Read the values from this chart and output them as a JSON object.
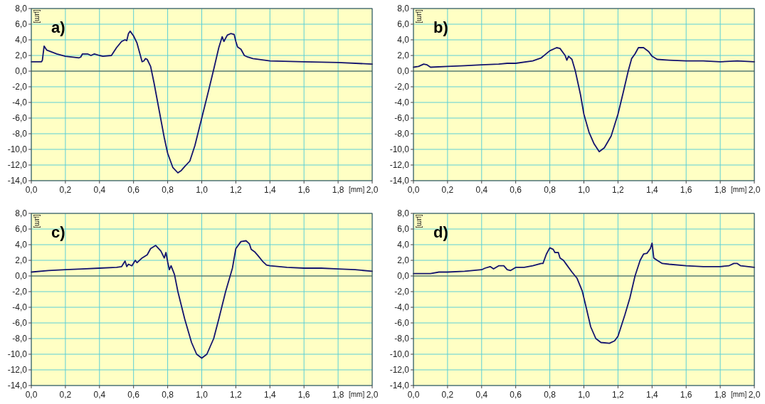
{
  "chart_data": [
    {
      "type": "line",
      "title": "a)",
      "xlabel": "[mm]",
      "ylabel": "[µm]",
      "xlim": [
        0,
        2
      ],
      "ylim": [
        -14,
        8
      ],
      "xticks": [
        {
          "value": 0,
          "label": "0,0"
        },
        {
          "value": 0.2,
          "label": "0,2"
        },
        {
          "value": 0.4,
          "label": "0,4"
        },
        {
          "value": 0.6,
          "label": "0,6"
        },
        {
          "value": 0.8,
          "label": "0,8"
        },
        {
          "value": 1,
          "label": "1,0"
        },
        {
          "value": 1.2,
          "label": "1,2"
        },
        {
          "value": 1.4,
          "label": "1,4"
        },
        {
          "value": 1.6,
          "label": "1,6"
        },
        {
          "value": 1.8,
          "label": "1,8"
        },
        {
          "value": 2,
          "label": "2,0"
        }
      ],
      "yticks": [
        {
          "value": -14,
          "label": "-14,0"
        },
        {
          "value": -12,
          "label": "-12,0"
        },
        {
          "value": -10,
          "label": "-10,0"
        },
        {
          "value": -8,
          "label": "-8,0"
        },
        {
          "value": -6,
          "label": "-6,0"
        },
        {
          "value": -4,
          "label": "-4,0"
        },
        {
          "value": -2,
          "label": "-2,0"
        },
        {
          "value": 0,
          "label": "0,0"
        },
        {
          "value": 2,
          "label": "2,0"
        },
        {
          "value": 4,
          "label": "4,0"
        },
        {
          "value": 6,
          "label": "6,0"
        },
        {
          "value": 8,
          "label": "8,0"
        }
      ],
      "grid": true,
      "line_style": "solid",
      "marker": "none",
      "ref_lines": [
        {
          "axis": "y",
          "value": 0,
          "color": "#555544"
        }
      ],
      "x": [
        0,
        0.06,
        0.065,
        0.075,
        0.09,
        0.15,
        0.2,
        0.28,
        0.29,
        0.3,
        0.33,
        0.35,
        0.37,
        0.4,
        0.42,
        0.47,
        0.5,
        0.53,
        0.55,
        0.56,
        0.57,
        0.58,
        0.6,
        0.62,
        0.64,
        0.65,
        0.66,
        0.67,
        0.68,
        0.7,
        0.72,
        0.75,
        0.78,
        0.8,
        0.83,
        0.86,
        0.88,
        0.9,
        0.93,
        0.96,
        1.0,
        1.04,
        1.07,
        1.1,
        1.12,
        1.13,
        1.15,
        1.17,
        1.19,
        1.2,
        1.21,
        1.23,
        1.25,
        1.27,
        1.3,
        1.4,
        1.6,
        1.8,
        2.0
      ],
      "series": [
        {
          "color": "#14146e",
          "values": [
            1.2,
            1.2,
            1.4,
            3.2,
            2.7,
            2.2,
            1.9,
            1.7,
            1.8,
            2.2,
            2.2,
            2.0,
            2.2,
            2.0,
            1.9,
            2.0,
            3.0,
            3.8,
            4.0,
            3.9,
            4.8,
            5.1,
            4.5,
            3.6,
            2.0,
            1.2,
            1.3,
            1.6,
            1.5,
            0.6,
            -1.5,
            -5.0,
            -8.5,
            -10.5,
            -12.3,
            -13.0,
            -12.7,
            -12.2,
            -11.5,
            -9.5,
            -6.0,
            -2.5,
            0.2,
            3.0,
            4.4,
            3.8,
            4.6,
            4.8,
            4.7,
            3.8,
            3.1,
            2.8,
            2.0,
            1.8,
            1.6,
            1.3,
            1.2,
            1.1,
            0.9
          ]
        }
      ]
    },
    {
      "type": "line",
      "title": "b)",
      "xlabel": "[mm]",
      "ylabel": "[µm]",
      "xlim": [
        0,
        2
      ],
      "ylim": [
        -14,
        8
      ],
      "xticks": [
        {
          "value": 0,
          "label": "0,0"
        },
        {
          "value": 0.2,
          "label": "0,2"
        },
        {
          "value": 0.4,
          "label": "0,4"
        },
        {
          "value": 0.6,
          "label": "0,6"
        },
        {
          "value": 0.8,
          "label": "0,8"
        },
        {
          "value": 1,
          "label": "1,0"
        },
        {
          "value": 1.2,
          "label": "1,2"
        },
        {
          "value": 1.4,
          "label": "1,4"
        },
        {
          "value": 1.6,
          "label": "1,6"
        },
        {
          "value": 1.8,
          "label": "1,8"
        },
        {
          "value": 2,
          "label": "2,0"
        }
      ],
      "yticks": [
        {
          "value": -14,
          "label": "-14,0"
        },
        {
          "value": -12,
          "label": "-12,0"
        },
        {
          "value": -10,
          "label": "-10,0"
        },
        {
          "value": -8,
          "label": "-8,0"
        },
        {
          "value": -6,
          "label": "-6,0"
        },
        {
          "value": -4,
          "label": "-4,0"
        },
        {
          "value": -2,
          "label": "-2,0"
        },
        {
          "value": 0,
          "label": "0,0"
        },
        {
          "value": 2,
          "label": "2,0"
        },
        {
          "value": 4,
          "label": "4,0"
        },
        {
          "value": 6,
          "label": "6,0"
        },
        {
          "value": 8,
          "label": "8,0"
        }
      ],
      "grid": true,
      "line_style": "solid",
      "marker": "none",
      "ref_lines": [
        {
          "axis": "y",
          "value": 0,
          "color": "#555544"
        }
      ],
      "x": [
        0,
        0.03,
        0.06,
        0.08,
        0.1,
        0.2,
        0.3,
        0.4,
        0.5,
        0.55,
        0.6,
        0.7,
        0.75,
        0.8,
        0.84,
        0.86,
        0.88,
        0.89,
        0.9,
        0.91,
        0.93,
        0.95,
        0.98,
        1.0,
        1.03,
        1.06,
        1.09,
        1.12,
        1.16,
        1.2,
        1.23,
        1.26,
        1.28,
        1.3,
        1.32,
        1.35,
        1.38,
        1.4,
        1.43,
        1.5,
        1.6,
        1.7,
        1.8,
        1.9,
        2.0
      ],
      "series": [
        {
          "color": "#14146e",
          "values": [
            0.5,
            0.6,
            0.9,
            0.8,
            0.5,
            0.6,
            0.7,
            0.8,
            0.9,
            1.0,
            1.0,
            1.3,
            1.7,
            2.6,
            3.0,
            2.9,
            2.3,
            2.0,
            1.4,
            1.9,
            1.5,
            0.0,
            -3.0,
            -5.5,
            -7.8,
            -9.3,
            -10.3,
            -9.8,
            -8.3,
            -5.5,
            -2.8,
            0.0,
            1.6,
            2.2,
            3.0,
            3.0,
            2.5,
            1.9,
            1.5,
            1.4,
            1.3,
            1.3,
            1.2,
            1.3,
            1.2
          ]
        }
      ]
    },
    {
      "type": "line",
      "title": "c)",
      "xlabel": "[mm]",
      "ylabel": "[µm]",
      "xlim": [
        0,
        2
      ],
      "ylim": [
        -14,
        8
      ],
      "xticks": [
        {
          "value": 0,
          "label": "0,0"
        },
        {
          "value": 0.2,
          "label": "0,2"
        },
        {
          "value": 0.4,
          "label": "0,4"
        },
        {
          "value": 0.6,
          "label": "0,6"
        },
        {
          "value": 0.8,
          "label": "0,8"
        },
        {
          "value": 1,
          "label": "1,0"
        },
        {
          "value": 1.2,
          "label": "1,2"
        },
        {
          "value": 1.4,
          "label": "1,4"
        },
        {
          "value": 1.6,
          "label": "1,6"
        },
        {
          "value": 1.8,
          "label": "1,8"
        },
        {
          "value": 2,
          "label": "2,0"
        }
      ],
      "yticks": [
        {
          "value": -14,
          "label": "-14,0"
        },
        {
          "value": -12,
          "label": "-12,0"
        },
        {
          "value": -10,
          "label": "-10,0"
        },
        {
          "value": -8,
          "label": "-8,0"
        },
        {
          "value": -6,
          "label": "-6,0"
        },
        {
          "value": -4,
          "label": "-4,0"
        },
        {
          "value": -2,
          "label": "-2,0"
        },
        {
          "value": 0,
          "label": "0,0"
        },
        {
          "value": 2,
          "label": "2,0"
        },
        {
          "value": 4,
          "label": "4,0"
        },
        {
          "value": 6,
          "label": "6,0"
        },
        {
          "value": 8,
          "label": "8,0"
        }
      ],
      "grid": true,
      "line_style": "solid",
      "marker": "none",
      "ref_lines": [
        {
          "axis": "y",
          "value": 0,
          "color": "#555544"
        }
      ],
      "x": [
        0,
        0.1,
        0.2,
        0.3,
        0.4,
        0.5,
        0.53,
        0.55,
        0.56,
        0.57,
        0.59,
        0.61,
        0.62,
        0.65,
        0.68,
        0.7,
        0.73,
        0.76,
        0.78,
        0.79,
        0.8,
        0.81,
        0.82,
        0.84,
        0.86,
        0.9,
        0.94,
        0.97,
        1.0,
        1.03,
        1.07,
        1.1,
        1.14,
        1.18,
        1.2,
        1.23,
        1.26,
        1.28,
        1.29,
        1.31,
        1.33,
        1.36,
        1.38,
        1.4,
        1.5,
        1.6,
        1.7,
        1.8,
        1.9,
        2.0
      ],
      "series": [
        {
          "color": "#14146e",
          "values": [
            0.5,
            0.7,
            0.8,
            0.9,
            1.0,
            1.1,
            1.2,
            1.9,
            1.2,
            1.5,
            1.3,
            2.0,
            1.7,
            2.3,
            2.7,
            3.5,
            3.9,
            3.2,
            2.3,
            3.0,
            1.8,
            0.8,
            1.3,
            0.2,
            -2.0,
            -5.5,
            -8.5,
            -10.0,
            -10.5,
            -10.0,
            -8.0,
            -5.5,
            -2.0,
            1.0,
            3.5,
            4.4,
            4.5,
            4.1,
            3.4,
            3.1,
            2.6,
            1.8,
            1.4,
            1.3,
            1.1,
            1.0,
            1.0,
            0.9,
            0.8,
            0.6
          ]
        }
      ]
    },
    {
      "type": "line",
      "title": "d)",
      "xlabel": "[mm]",
      "ylabel": "[µm]",
      "xlim": [
        0,
        2
      ],
      "ylim": [
        -14,
        8
      ],
      "xticks": [
        {
          "value": 0,
          "label": "0,0"
        },
        {
          "value": 0.2,
          "label": "0,2"
        },
        {
          "value": 0.4,
          "label": "0,4"
        },
        {
          "value": 0.6,
          "label": "0,6"
        },
        {
          "value": 0.8,
          "label": "0,8"
        },
        {
          "value": 1,
          "label": "1,0"
        },
        {
          "value": 1.2,
          "label": "1,2"
        },
        {
          "value": 1.4,
          "label": "1,4"
        },
        {
          "value": 1.6,
          "label": "1,6"
        },
        {
          "value": 1.8,
          "label": "1,8"
        },
        {
          "value": 2,
          "label": "2,0"
        }
      ],
      "yticks": [
        {
          "value": -14,
          "label": "-14,0"
        },
        {
          "value": -12,
          "label": "-12,0"
        },
        {
          "value": -10,
          "label": "-10,0"
        },
        {
          "value": -8,
          "label": "-8,0"
        },
        {
          "value": -6,
          "label": "-6,0"
        },
        {
          "value": -4,
          "label": "-4,0"
        },
        {
          "value": -2,
          "label": "-2,0"
        },
        {
          "value": 0,
          "label": "0,0"
        },
        {
          "value": 2,
          "label": "2,0"
        },
        {
          "value": 4,
          "label": "4,0"
        },
        {
          "value": 6,
          "label": "6,0"
        },
        {
          "value": 8,
          "label": "8,0"
        }
      ],
      "grid": true,
      "line_style": "solid",
      "marker": "none",
      "ref_lines": [
        {
          "axis": "y",
          "value": 0,
          "color": "#555544"
        }
      ],
      "x": [
        0,
        0.1,
        0.15,
        0.2,
        0.3,
        0.4,
        0.42,
        0.45,
        0.47,
        0.5,
        0.53,
        0.55,
        0.57,
        0.6,
        0.65,
        0.7,
        0.75,
        0.76,
        0.78,
        0.8,
        0.82,
        0.83,
        0.85,
        0.86,
        0.88,
        0.9,
        0.93,
        0.96,
        0.99,
        1.01,
        1.04,
        1.07,
        1.1,
        1.15,
        1.18,
        1.2,
        1.24,
        1.27,
        1.3,
        1.33,
        1.35,
        1.37,
        1.39,
        1.4,
        1.41,
        1.43,
        1.46,
        1.5,
        1.6,
        1.7,
        1.8,
        1.85,
        1.88,
        1.9,
        1.92,
        2.0
      ],
      "series": [
        {
          "color": "#14146e",
          "values": [
            0.3,
            0.3,
            0.5,
            0.5,
            0.6,
            0.8,
            1.0,
            1.2,
            0.9,
            1.3,
            1.3,
            0.8,
            0.7,
            1.1,
            1.1,
            1.3,
            1.6,
            1.6,
            2.8,
            3.6,
            3.4,
            3.0,
            3.0,
            2.3,
            2.0,
            1.4,
            0.5,
            -0.3,
            -1.9,
            -3.7,
            -6.5,
            -8.0,
            -8.5,
            -8.6,
            -8.3,
            -7.7,
            -5.0,
            -2.8,
            0.0,
            2.0,
            2.8,
            2.9,
            3.5,
            4.2,
            2.3,
            2.0,
            1.6,
            1.5,
            1.3,
            1.2,
            1.2,
            1.3,
            1.6,
            1.6,
            1.3,
            1.1
          ]
        }
      ]
    }
  ]
}
